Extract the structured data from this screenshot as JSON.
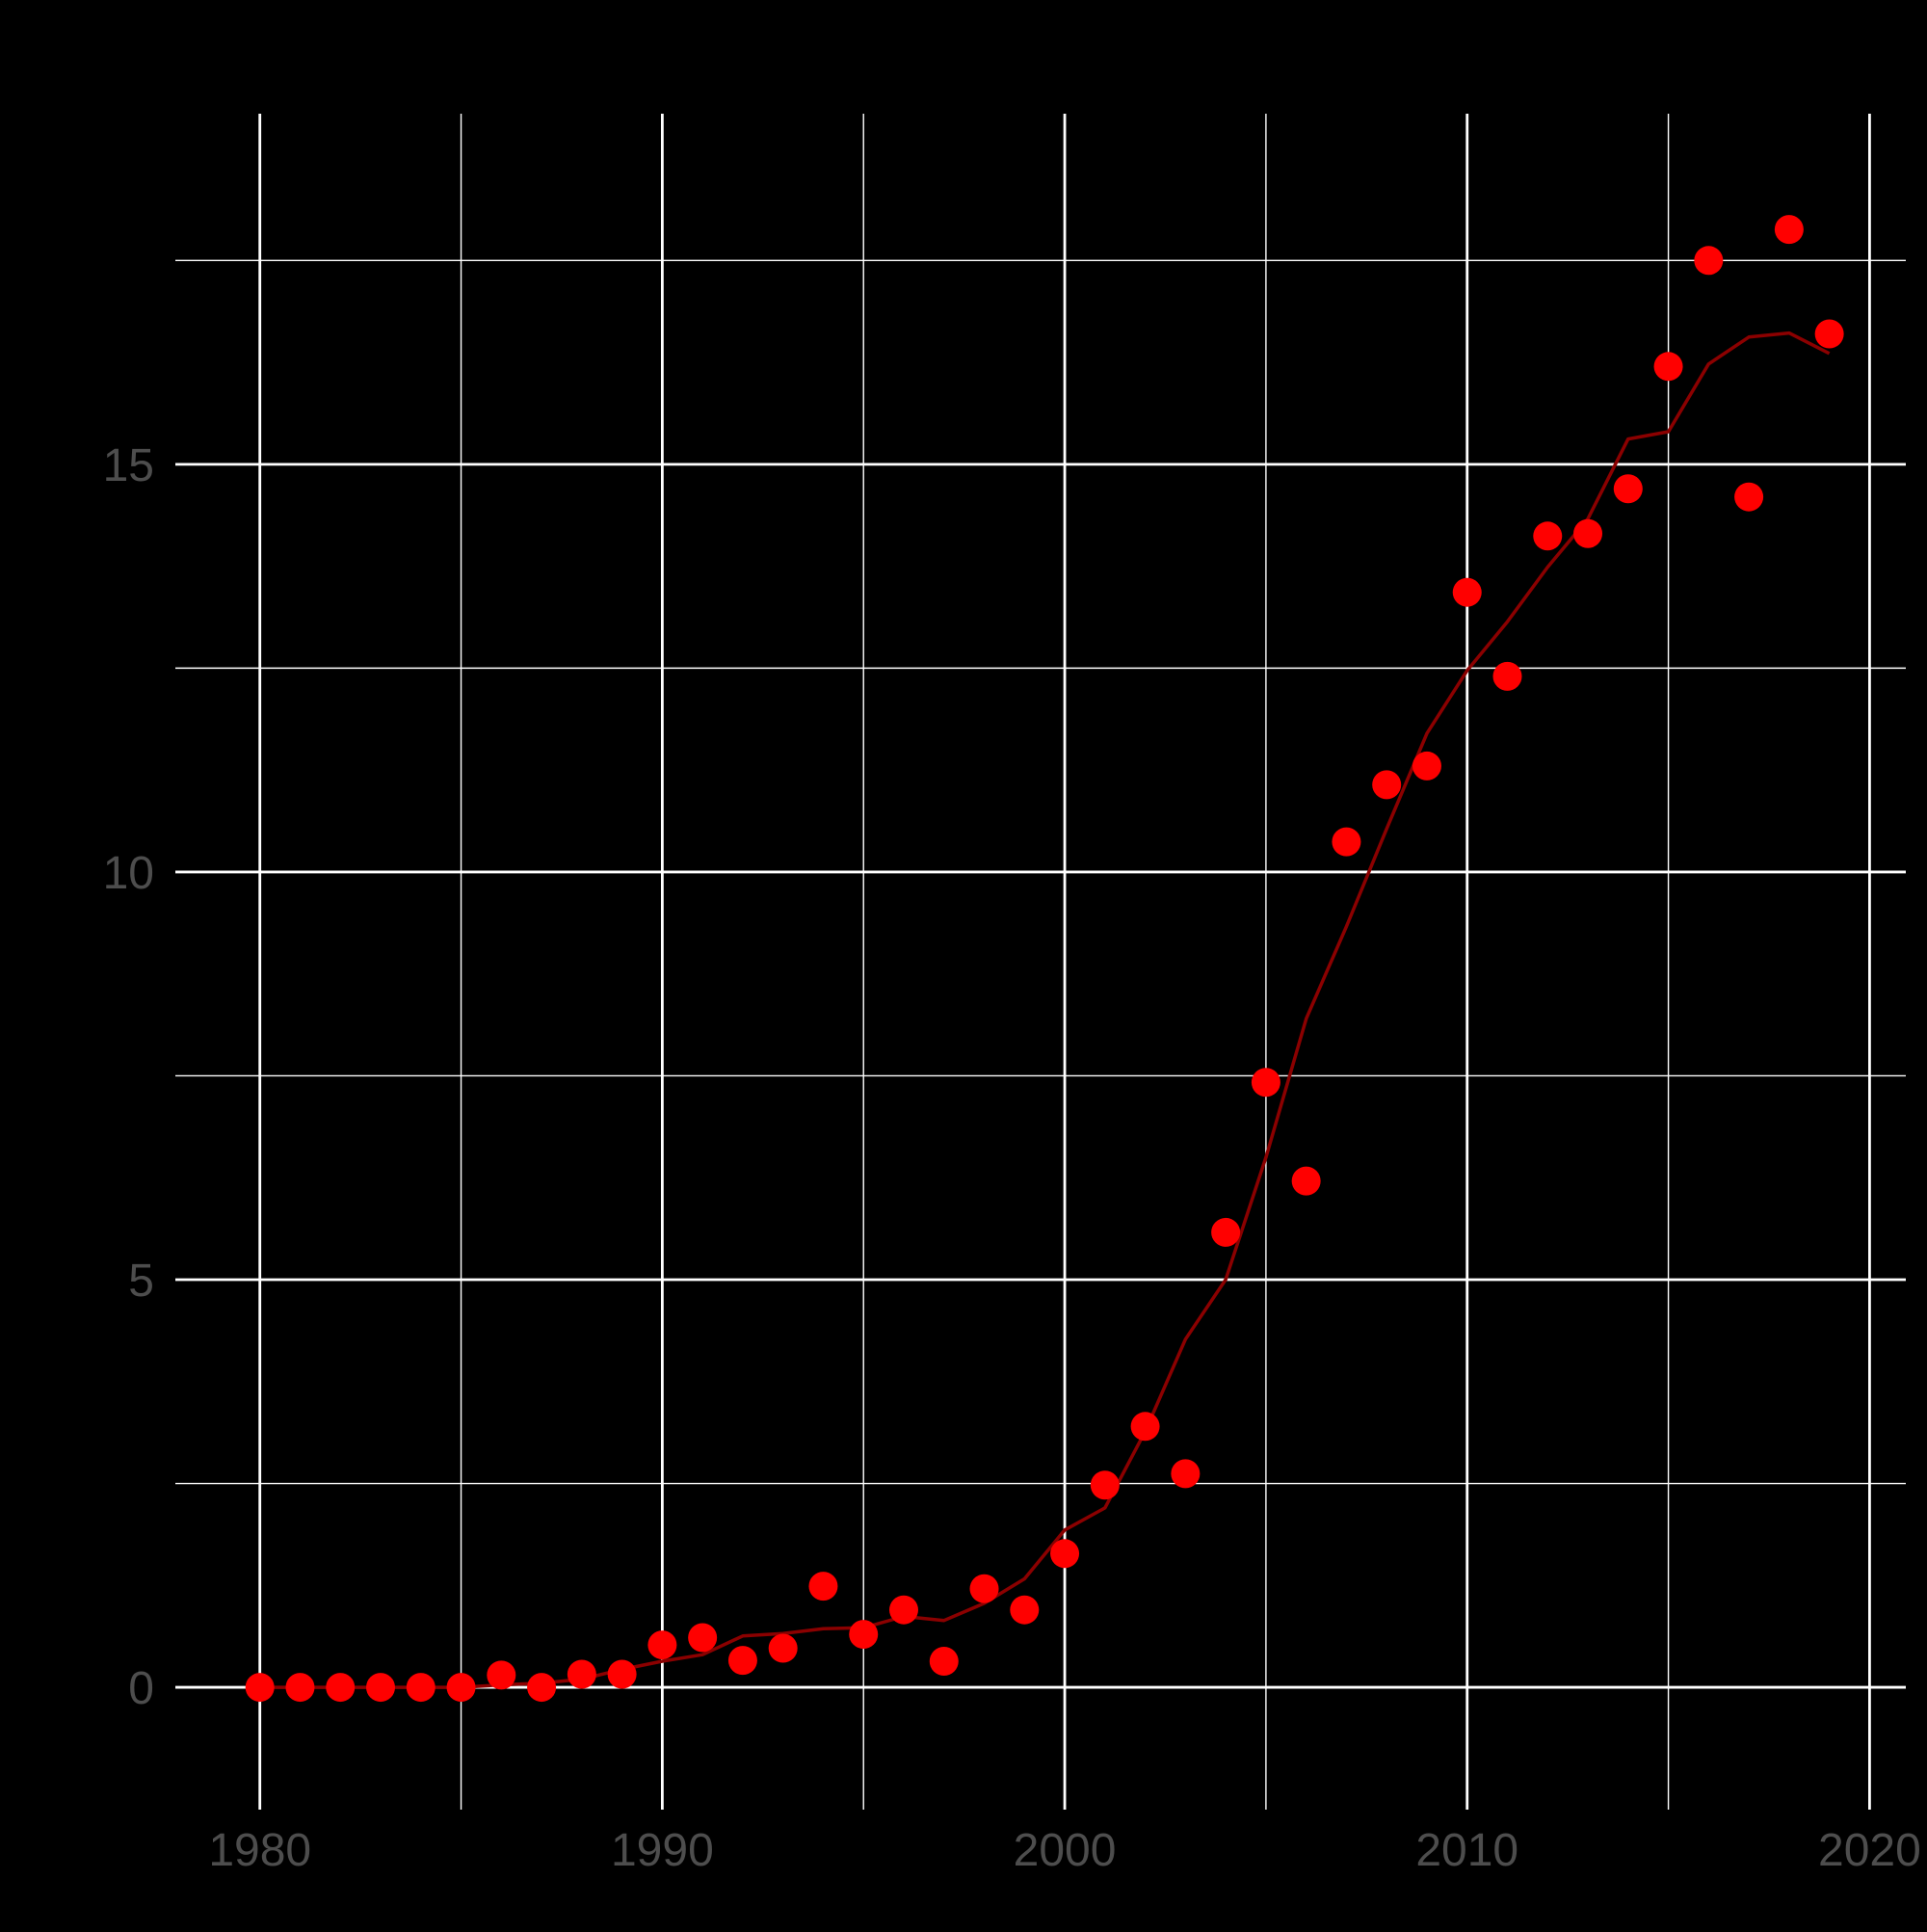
{
  "chart_data": {
    "type": "scatter",
    "title": "",
    "xlabel": "",
    "ylabel": "",
    "xlim": [
      1977.9,
      2020.9
    ],
    "ylim": [
      -1.5,
      19.3
    ],
    "x_ticks": [
      1980,
      1990,
      2000,
      2010,
      2020
    ],
    "x_tick_labels": [
      "1980",
      "1990",
      "2000",
      "2010",
      "2020"
    ],
    "x_minor_ticks": [
      1985,
      1995,
      2005,
      2015
    ],
    "y_ticks": [
      0,
      5,
      10,
      15
    ],
    "y_tick_labels": [
      "0",
      "5",
      "10",
      "15"
    ],
    "y_minor_ticks": [
      2.5,
      7.5,
      12.5,
      17.5
    ],
    "grid": true,
    "background": "#000000",
    "grid_color": "#ffffff",
    "tick_label_color": "#4d4d4d",
    "series": [
      {
        "type": "scatter",
        "color": "#ff0000",
        "points": [
          {
            "x": 1980,
            "y": 0.0
          },
          {
            "x": 1981,
            "y": 0.0
          },
          {
            "x": 1982,
            "y": 0.0
          },
          {
            "x": 1983,
            "y": 0.0
          },
          {
            "x": 1984,
            "y": 0.0
          },
          {
            "x": 1985,
            "y": 0.0
          },
          {
            "x": 1986,
            "y": 0.15
          },
          {
            "x": 1987,
            "y": 0.0
          },
          {
            "x": 1988,
            "y": 0.16
          },
          {
            "x": 1989,
            "y": 0.16
          },
          {
            "x": 1990,
            "y": 0.52
          },
          {
            "x": 1991,
            "y": 0.61
          },
          {
            "x": 1992,
            "y": 0.33
          },
          {
            "x": 1993,
            "y": 0.48
          },
          {
            "x": 1994,
            "y": 1.24
          },
          {
            "x": 1995,
            "y": 0.65
          },
          {
            "x": 1996,
            "y": 0.95
          },
          {
            "x": 1997,
            "y": 0.32
          },
          {
            "x": 1998,
            "y": 1.21
          },
          {
            "x": 1999,
            "y": 0.95
          },
          {
            "x": 2000,
            "y": 1.64
          },
          {
            "x": 2001,
            "y": 2.48
          },
          {
            "x": 2002,
            "y": 3.2
          },
          {
            "x": 2003,
            "y": 2.62
          },
          {
            "x": 2004,
            "y": 5.58
          },
          {
            "x": 2005,
            "y": 7.42
          },
          {
            "x": 2006,
            "y": 6.21
          },
          {
            "x": 2007,
            "y": 10.37
          },
          {
            "x": 2008,
            "y": 11.07
          },
          {
            "x": 2009,
            "y": 11.3
          },
          {
            "x": 2010,
            "y": 13.43
          },
          {
            "x": 2011,
            "y": 12.4
          },
          {
            "x": 2012,
            "y": 14.12
          },
          {
            "x": 2013,
            "y": 14.15
          },
          {
            "x": 2014,
            "y": 14.7
          },
          {
            "x": 2015,
            "y": 16.2
          },
          {
            "x": 2016,
            "y": 17.5
          },
          {
            "x": 2017,
            "y": 14.6
          },
          {
            "x": 2018,
            "y": 17.88
          },
          {
            "x": 2019,
            "y": 16.6
          }
        ]
      },
      {
        "type": "line",
        "color": "#8b0000",
        "points": [
          {
            "x": 1980,
            "y": 0.0
          },
          {
            "x": 1981,
            "y": 0.0
          },
          {
            "x": 1982,
            "y": 0.0
          },
          {
            "x": 1983,
            "y": 0.0
          },
          {
            "x": 1984,
            "y": 0.0
          },
          {
            "x": 1985,
            "y": 0.0
          },
          {
            "x": 1986,
            "y": 0.03
          },
          {
            "x": 1987,
            "y": 0.05
          },
          {
            "x": 1988,
            "y": 0.1
          },
          {
            "x": 1989,
            "y": 0.22
          },
          {
            "x": 1990,
            "y": 0.32
          },
          {
            "x": 1991,
            "y": 0.4
          },
          {
            "x": 1992,
            "y": 0.63
          },
          {
            "x": 1993,
            "y": 0.66
          },
          {
            "x": 1994,
            "y": 0.72
          },
          {
            "x": 1995,
            "y": 0.73
          },
          {
            "x": 1996,
            "y": 0.87
          },
          {
            "x": 1997,
            "y": 0.82
          },
          {
            "x": 1998,
            "y": 1.03
          },
          {
            "x": 1999,
            "y": 1.33
          },
          {
            "x": 2000,
            "y": 1.93
          },
          {
            "x": 2001,
            "y": 2.2
          },
          {
            "x": 2002,
            "y": 3.14
          },
          {
            "x": 2003,
            "y": 4.27
          },
          {
            "x": 2004,
            "y": 5.0
          },
          {
            "x": 2005,
            "y": 6.5
          },
          {
            "x": 2006,
            "y": 8.2
          },
          {
            "x": 2007,
            "y": 9.33
          },
          {
            "x": 2008,
            "y": 10.53
          },
          {
            "x": 2009,
            "y": 11.7
          },
          {
            "x": 2010,
            "y": 12.47
          },
          {
            "x": 2011,
            "y": 13.07
          },
          {
            "x": 2012,
            "y": 13.74
          },
          {
            "x": 2013,
            "y": 14.33
          },
          {
            "x": 2014,
            "y": 15.31
          },
          {
            "x": 2015,
            "y": 15.4
          },
          {
            "x": 2016,
            "y": 16.23
          },
          {
            "x": 2017,
            "y": 16.56
          },
          {
            "x": 2018,
            "y": 16.61
          },
          {
            "x": 2019,
            "y": 16.36
          }
        ]
      }
    ]
  }
}
